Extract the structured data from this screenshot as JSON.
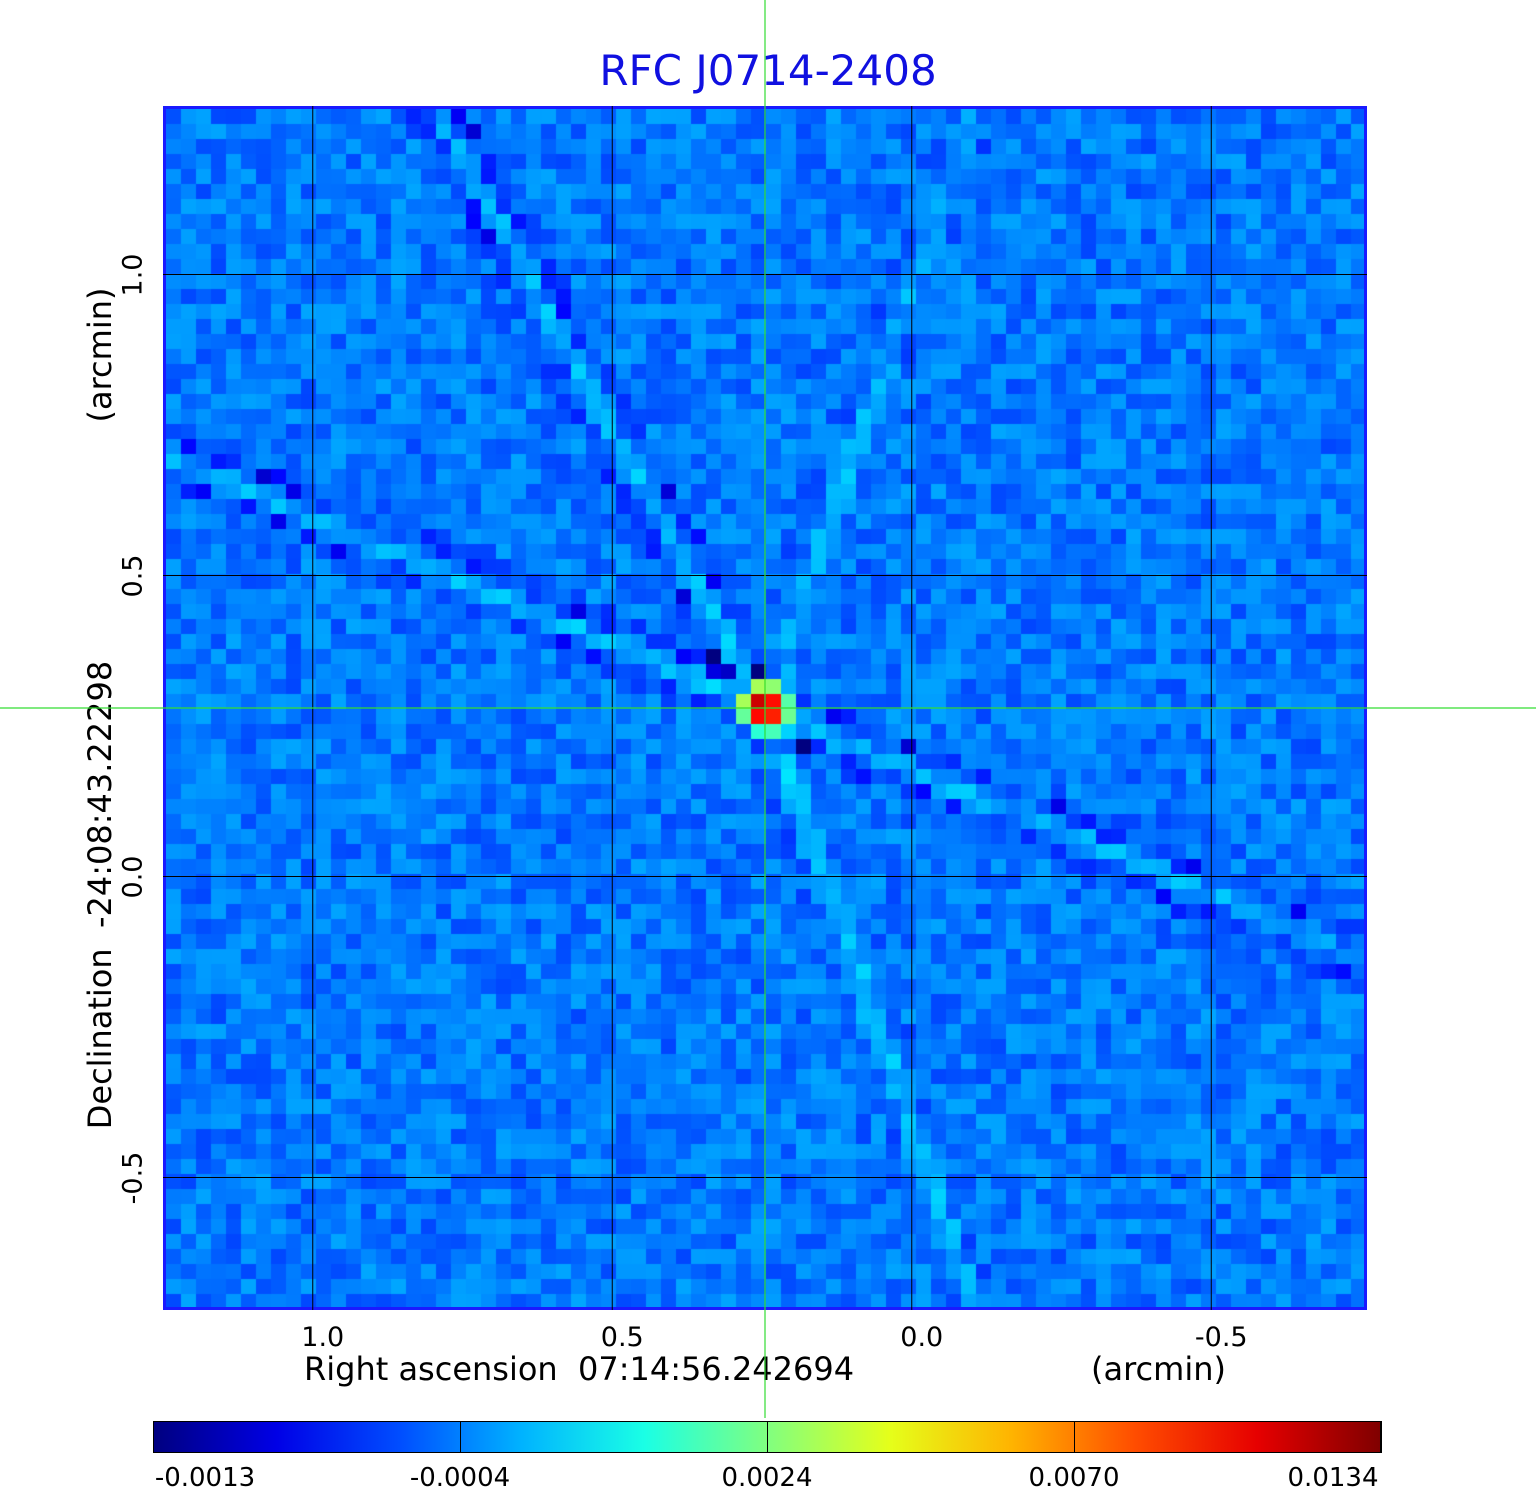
{
  "chart_data": {
    "type": "heatmap",
    "title": "RFC J0714-2408",
    "xlabel": "Right ascension  07:14:56.242694",
    "xunit": "(arcmin)",
    "ylabel": "Declination  -24:08:43.22298",
    "yunit": "(arcmin)",
    "x_range": [
      1.25,
      -0.76
    ],
    "y_range": [
      -0.72,
      1.28
    ],
    "x_ticks": [
      "1.0",
      "0.5",
      "0.0",
      "-0.5"
    ],
    "x_tick_values": [
      1.0,
      0.5,
      0.0,
      -0.5
    ],
    "y_ticks": [
      "1.0",
      "0.5",
      "0.0",
      "-0.5"
    ],
    "y_tick_values": [
      1.0,
      0.5,
      0.0,
      -0.5
    ],
    "grid": true,
    "crosshair": {
      "x": 0.245,
      "y": 0.28
    },
    "peak": {
      "x": 0.245,
      "y": 0.28,
      "value": 0.0134
    },
    "colorbar": {
      "colormap": "jet",
      "ticks": [
        "-0.0013",
        "-0.0004",
        "0.0024",
        "0.0070",
        "0.0134"
      ],
      "tick_values": [
        -0.0013,
        -0.0004,
        0.0024,
        0.007,
        0.0134
      ],
      "min": -0.0013,
      "max": 0.0134
    }
  },
  "colors": {
    "title": "#1010e0",
    "frame": "#1a1aff",
    "crosshair": "#33dd33",
    "grid": "#000000"
  }
}
